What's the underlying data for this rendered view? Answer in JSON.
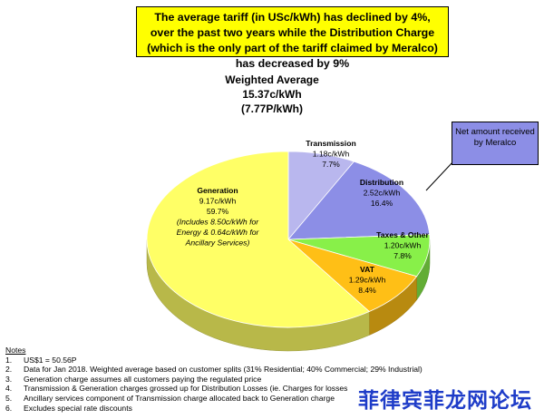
{
  "headline": "The average tariff (in USc/kWh) has declined by 4%, over the past two years while the Distribution Charge (which is the only part of the tariff claimed by Meralco) has decreased by 9%",
  "callout": {
    "text": "Net amount received by Meralco",
    "color": "#8c8ee6"
  },
  "chart_data": {
    "type": "pie",
    "title": [
      "Weighted Average",
      "15.37c/kWh",
      "(7.77P/kWh)"
    ],
    "slices": [
      {
        "name": "Transmission",
        "value": 1.18,
        "value_label": "1.18c/kWh",
        "percent": 7.7,
        "percent_label": "7.7%",
        "color": "#b9b7ee"
      },
      {
        "name": "Distribution",
        "value": 2.52,
        "value_label": "2.52c/kWh",
        "percent": 16.4,
        "percent_label": "16.4%",
        "color": "#8c8ee6"
      },
      {
        "name": "Taxes & Other",
        "value": 1.2,
        "value_label": "1.20c/kWh",
        "percent": 7.8,
        "percent_label": "7.8%",
        "color": "#88f049"
      },
      {
        "name": "VAT",
        "value": 1.29,
        "value_label": "1.29c/kWh",
        "percent": 8.4,
        "percent_label": "8.4%",
        "color": "#ffbf16"
      },
      {
        "name": "Generation",
        "value": 9.17,
        "value_label": "9.17c/kWh",
        "percent": 59.7,
        "percent_label": "59.7%",
        "color": "#ffff66",
        "note": [
          "(Includes  8.50c/kWh for",
          "Energy & 0.64c/kWh for",
          "Ancillary Services)"
        ]
      }
    ]
  },
  "notes": {
    "title": "Notes",
    "items": [
      {
        "num": "1.",
        "text": "US$1 = 50.56P"
      },
      {
        "num": "2.",
        "text": "Data for Jan 2018.  Weighted average based on customer splits (31% Residential; 40% Commercial; 29% Industrial)"
      },
      {
        "num": "3.",
        "text": "Generation charge assumes all customers paying the regulated price"
      },
      {
        "num": "4.",
        "text": "Transmission & Generation charges grossed up for Distribution Losses (ie. Charges for losses"
      },
      {
        "num": "5.",
        "text": "Ancillary services component of Transmission charge allocated back to Generation charge"
      },
      {
        "num": "6.",
        "text": "Excludes special rate discounts"
      }
    ]
  },
  "watermark": "菲律宾菲龙网论坛"
}
